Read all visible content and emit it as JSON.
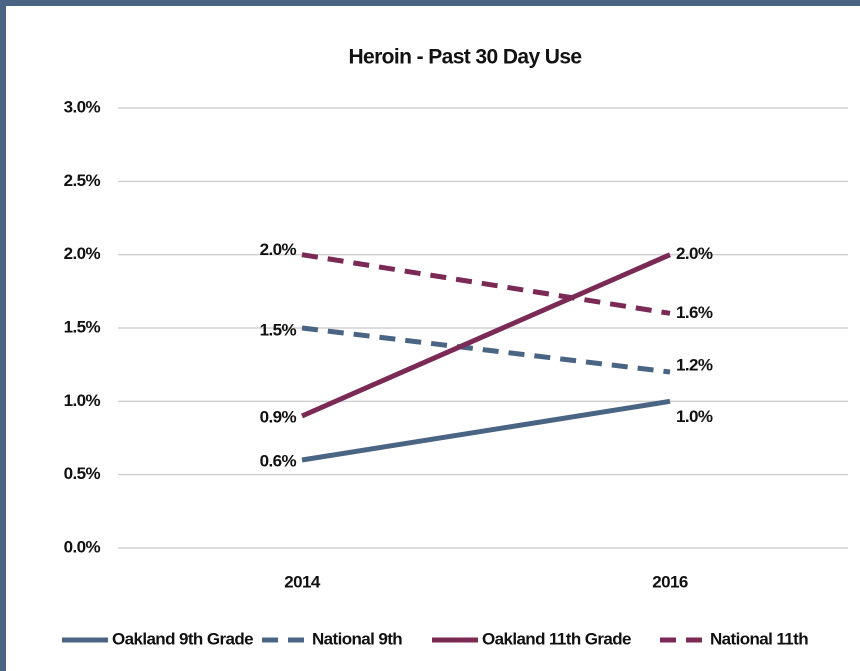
{
  "chart_data": {
    "type": "line",
    "title": "Heroin - Past 30 Day Use",
    "categories": [
      "2014",
      "2016"
    ],
    "series": [
      {
        "name": "Oakland 9th Grade",
        "color": "#4a6584",
        "dash": false,
        "values": [
          0.6,
          1.0
        ],
        "value_labels": [
          "0.6%",
          "1.0%"
        ]
      },
      {
        "name": "National 9th",
        "color": "#4a6584",
        "dash": true,
        "values": [
          1.5,
          1.2
        ],
        "value_labels": [
          "1.5%",
          "1.2%"
        ]
      },
      {
        "name": "Oakland 11th Grade",
        "color": "#7b2a56",
        "dash": false,
        "values": [
          0.9,
          2.0
        ],
        "value_labels": [
          "0.9%",
          "2.0%"
        ]
      },
      {
        "name": "National 11th",
        "color": "#7b2a56",
        "dash": true,
        "values": [
          2.0,
          1.6
        ],
        "value_labels": [
          "2.0%",
          "1.6%"
        ]
      }
    ],
    "ylim": [
      0,
      3
    ],
    "yticks": [
      {
        "value": 0,
        "label": "0.0%"
      },
      {
        "value": 0.5,
        "label": "0.5%"
      },
      {
        "value": 1,
        "label": "1.0%"
      },
      {
        "value": 1.5,
        "label": "1.5%"
      },
      {
        "value": 2,
        "label": "2.0%"
      },
      {
        "value": 2.5,
        "label": "2.5%"
      },
      {
        "value": 3,
        "label": "3.0%"
      }
    ],
    "grid": true,
    "legend": "bottom"
  }
}
